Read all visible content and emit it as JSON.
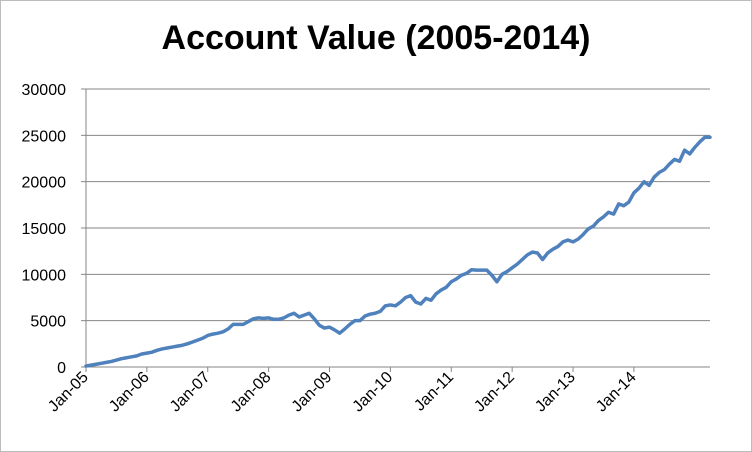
{
  "chart_data": {
    "type": "line",
    "title": "Account Value (2005-2014)",
    "xlabel": "",
    "ylabel": "",
    "ylim": [
      0,
      30000
    ],
    "y_ticks": [
      0,
      5000,
      10000,
      15000,
      20000,
      25000,
      30000
    ],
    "x_tick_labels": [
      "Jan-05",
      "Jan-06",
      "Jan-07",
      "Jan-08",
      "Jan-09",
      "Jan-10",
      "Jan-11",
      "Jan-12",
      "Jan-13",
      "Jan-14"
    ],
    "grid": true,
    "legend": "none",
    "line_color": "#4f81bd",
    "series": [
      {
        "values": [
          100,
          200,
          300,
          400,
          500,
          600,
          750,
          900,
          1000,
          1100,
          1200,
          1400,
          1500,
          1600,
          1800,
          1950,
          2050,
          2150,
          2250,
          2350,
          2500,
          2700,
          2900,
          3100,
          3400,
          3550,
          3650,
          3800,
          4100,
          4600,
          4600,
          4600,
          4900,
          5200,
          5300,
          5250,
          5300,
          5150,
          5150,
          5300,
          5600,
          5800,
          5400,
          5600,
          5800,
          5200,
          4500,
          4200,
          4300,
          4000,
          3650,
          4100,
          4600,
          5000,
          5000,
          5500,
          5700,
          5800,
          6000,
          6600,
          6700,
          6600,
          7000,
          7500,
          7700,
          7000,
          6800,
          7400,
          7200,
          7900,
          8300,
          8600,
          9200,
          9500,
          9900,
          10100,
          10500,
          10450,
          10450,
          10450,
          9900,
          9200,
          10000,
          10300,
          10700,
          11100,
          11600,
          12100,
          12400,
          12300,
          11600,
          12300,
          12700,
          13000,
          13500,
          13700,
          13500,
          13800,
          14300,
          14900,
          15200,
          15800,
          16200,
          16700,
          16500,
          17600,
          17400,
          17800,
          18800,
          19300,
          20000,
          19600,
          20500,
          21000,
          21300,
          21900,
          22400,
          22200,
          23400,
          23000,
          23700,
          24300,
          24800,
          24800
        ]
      }
    ]
  }
}
